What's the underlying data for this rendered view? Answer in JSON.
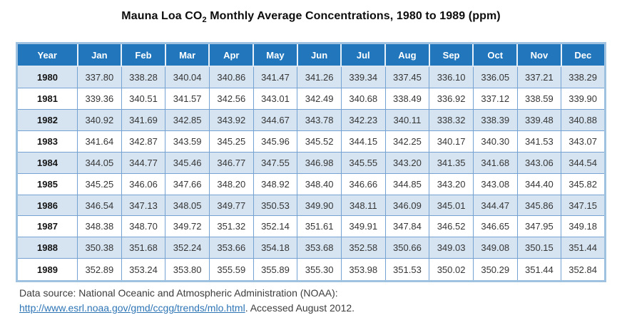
{
  "title": {
    "prefix": "Mauna Loa CO",
    "subscript": "2",
    "suffix": " Monthly Average Concentrations, 1980 to 1989 (ppm)"
  },
  "table": {
    "headers": [
      "Year",
      "Jan",
      "Feb",
      "Mar",
      "Apr",
      "May",
      "Jun",
      "Jul",
      "Aug",
      "Sep",
      "Oct",
      "Nov",
      "Dec"
    ],
    "rows": [
      {
        "year": "1980",
        "values": [
          "337.80",
          "338.28",
          "340.04",
          "340.86",
          "341.47",
          "341.26",
          "339.34",
          "337.45",
          "336.10",
          "336.05",
          "337.21",
          "338.29"
        ]
      },
      {
        "year": "1981",
        "values": [
          "339.36",
          "340.51",
          "341.57",
          "342.56",
          "343.01",
          "342.49",
          "340.68",
          "338.49",
          "336.92",
          "337.12",
          "338.59",
          "339.90"
        ]
      },
      {
        "year": "1982",
        "values": [
          "340.92",
          "341.69",
          "342.85",
          "343.92",
          "344.67",
          "343.78",
          "342.23",
          "340.11",
          "338.32",
          "338.39",
          "339.48",
          "340.88"
        ]
      },
      {
        "year": "1983",
        "values": [
          "341.64",
          "342.87",
          "343.59",
          "345.25",
          "345.96",
          "345.52",
          "344.15",
          "342.25",
          "340.17",
          "340.30",
          "341.53",
          "343.07"
        ]
      },
      {
        "year": "1984",
        "values": [
          "344.05",
          "344.77",
          "345.46",
          "346.77",
          "347.55",
          "346.98",
          "345.55",
          "343.20",
          "341.35",
          "341.68",
          "343.06",
          "344.54"
        ]
      },
      {
        "year": "1985",
        "values": [
          "345.25",
          "346.06",
          "347.66",
          "348.20",
          "348.92",
          "348.40",
          "346.66",
          "344.85",
          "343.20",
          "343.08",
          "344.40",
          "345.82"
        ]
      },
      {
        "year": "1986",
        "values": [
          "346.54",
          "347.13",
          "348.05",
          "349.77",
          "350.53",
          "349.90",
          "348.11",
          "346.09",
          "345.01",
          "344.47",
          "345.86",
          "347.15"
        ]
      },
      {
        "year": "1987",
        "values": [
          "348.38",
          "348.70",
          "349.72",
          "351.32",
          "352.14",
          "351.61",
          "349.91",
          "347.84",
          "346.52",
          "346.65",
          "347.95",
          "349.18"
        ]
      },
      {
        "year": "1988",
        "values": [
          "350.38",
          "351.68",
          "352.24",
          "353.66",
          "354.18",
          "353.68",
          "352.58",
          "350.66",
          "349.03",
          "349.08",
          "350.15",
          "351.44"
        ]
      },
      {
        "year": "1989",
        "values": [
          "352.89",
          "353.24",
          "353.80",
          "355.59",
          "355.89",
          "355.30",
          "353.98",
          "351.53",
          "350.02",
          "350.29",
          "351.44",
          "352.84"
        ]
      }
    ]
  },
  "footer": {
    "line1": "Data source: National Oceanic and Atmospheric Administration (NOAA):",
    "link": "http://www.esrl.noaa.gov/gmd/ccgg/trends/mlo.html",
    "after_link": ". Accessed August 2012."
  },
  "colors": {
    "header_bg": "#2277bc",
    "row_alt_bg": "#d6e4f1",
    "cell_border": "#74a3d3",
    "outer_border": "#9fc2e1",
    "link": "#2e75b6"
  },
  "chart_data": {
    "type": "table",
    "title": "Mauna Loa CO2 Monthly Average Concentrations, 1980 to 1989 (ppm)",
    "columns": [
      "Year",
      "Jan",
      "Feb",
      "Mar",
      "Apr",
      "May",
      "Jun",
      "Jul",
      "Aug",
      "Sep",
      "Oct",
      "Nov",
      "Dec"
    ],
    "rows": [
      [
        1980,
        337.8,
        338.28,
        340.04,
        340.86,
        341.47,
        341.26,
        339.34,
        337.45,
        336.1,
        336.05,
        337.21,
        338.29
      ],
      [
        1981,
        339.36,
        340.51,
        341.57,
        342.56,
        343.01,
        342.49,
        340.68,
        338.49,
        336.92,
        337.12,
        338.59,
        339.9
      ],
      [
        1982,
        340.92,
        341.69,
        342.85,
        343.92,
        344.67,
        343.78,
        342.23,
        340.11,
        338.32,
        338.39,
        339.48,
        340.88
      ],
      [
        1983,
        341.64,
        342.87,
        343.59,
        345.25,
        345.96,
        345.52,
        344.15,
        342.25,
        340.17,
        340.3,
        341.53,
        343.07
      ],
      [
        1984,
        344.05,
        344.77,
        345.46,
        346.77,
        347.55,
        346.98,
        345.55,
        343.2,
        341.35,
        341.68,
        343.06,
        344.54
      ],
      [
        1985,
        345.25,
        346.06,
        347.66,
        348.2,
        348.92,
        348.4,
        346.66,
        344.85,
        343.2,
        343.08,
        344.4,
        345.82
      ],
      [
        1986,
        346.54,
        347.13,
        348.05,
        349.77,
        350.53,
        349.9,
        348.11,
        346.09,
        345.01,
        344.47,
        345.86,
        347.15
      ],
      [
        1987,
        348.38,
        348.7,
        349.72,
        351.32,
        352.14,
        351.61,
        349.91,
        347.84,
        346.52,
        346.65,
        347.95,
        349.18
      ],
      [
        1988,
        350.38,
        351.68,
        352.24,
        353.66,
        354.18,
        353.68,
        352.58,
        350.66,
        349.03,
        349.08,
        350.15,
        351.44
      ],
      [
        1989,
        352.89,
        353.24,
        353.8,
        355.59,
        355.89,
        355.3,
        353.98,
        351.53,
        350.02,
        350.29,
        351.44,
        352.84
      ]
    ]
  }
}
